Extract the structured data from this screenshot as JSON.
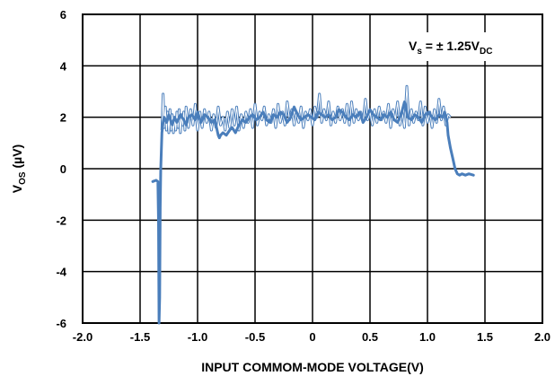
{
  "chart_data": {
    "type": "line",
    "xlabel": "INPUT COMMOM-MODE VOLTAGE(V)",
    "ylabel": {
      "main": "V",
      "sub": "OS",
      "rest": " (µV)"
    },
    "annotation": {
      "v": "V",
      "s": "s",
      "mid": " = ± 1.25V",
      "dc": "DC"
    },
    "xlim": [
      -2.0,
      2.0
    ],
    "ylim": [
      -6,
      6
    ],
    "x_ticks": [
      "-2.0",
      "-1.5",
      "-1.0",
      "-0.5",
      "0",
      "0.5",
      "1.0",
      "1.5",
      "2.0"
    ],
    "y_ticks": [
      "6",
      "4",
      "2",
      "0",
      "-2",
      "-4",
      "-6"
    ],
    "grid": true,
    "colors": {
      "thick": "#4a7ebb",
      "thin": "#4a7ebb"
    },
    "series": [
      {
        "style": "thick",
        "x": [
          -1.39,
          -1.36,
          -1.345,
          -1.34,
          -1.335,
          -1.33,
          -1.325,
          -1.32,
          -1.31,
          -1.3,
          -1.29,
          -1.27,
          -1.25,
          -1.22,
          -1.2,
          -1.18,
          -1.15,
          -1.12,
          -1.1,
          -1.08,
          -1.05,
          -1.02,
          -1.0,
          -0.97,
          -0.94,
          -0.91,
          -0.88,
          -0.85,
          -0.82,
          -0.81,
          -0.8,
          -0.78,
          -0.75,
          -0.72,
          -0.7,
          -0.67,
          -0.64,
          -0.61,
          -0.58,
          -0.55,
          -0.52,
          -0.49,
          -0.46,
          -0.43,
          -0.4,
          -0.37,
          -0.34,
          -0.31,
          -0.28,
          -0.25,
          -0.22,
          -0.19,
          -0.16,
          -0.13,
          -0.1,
          -0.07,
          -0.04,
          -0.01,
          0.02,
          0.05,
          0.08,
          0.11,
          0.14,
          0.17,
          0.2,
          0.23,
          0.26,
          0.29,
          0.32,
          0.35,
          0.38,
          0.41,
          0.44,
          0.47,
          0.5,
          0.53,
          0.56,
          0.59,
          0.62,
          0.65,
          0.68,
          0.71,
          0.74,
          0.77,
          0.8,
          0.83,
          0.86,
          0.89,
          0.92,
          0.95,
          0.98,
          1.01,
          1.04,
          1.07,
          1.1,
          1.13,
          1.15,
          1.17,
          1.18,
          1.2,
          1.22,
          1.24,
          1.26,
          1.28,
          1.3,
          1.33,
          1.36,
          1.4
        ],
        "y": [
          -0.5,
          -0.45,
          -0.5,
          -2.0,
          -6.0,
          -5.0,
          -1.5,
          0.0,
          1.4,
          1.8,
          2.0,
          1.8,
          2.1,
          1.7,
          2.0,
          1.8,
          2.1,
          1.9,
          1.7,
          2.0,
          2.1,
          1.9,
          2.2,
          1.8,
          2.1,
          2.0,
          1.8,
          1.9,
          1.3,
          1.2,
          1.3,
          1.4,
          1.3,
          1.5,
          1.6,
          1.4,
          1.7,
          1.9,
          1.8,
          2.0,
          2.1,
          1.9,
          2.0,
          2.2,
          1.9,
          1.8,
          2.1,
          2.0,
          2.2,
          2.1,
          1.8,
          2.0,
          2.4,
          2.1,
          1.9,
          2.0,
          2.1,
          2.0,
          1.9,
          2.2,
          2.1,
          2.0,
          2.1,
          1.9,
          2.0,
          2.3,
          2.2,
          2.0,
          1.9,
          2.1,
          2.0,
          2.2,
          1.8,
          2.0,
          2.3,
          2.1,
          2.0,
          1.9,
          2.1,
          2.0,
          2.2,
          1.9,
          1.8,
          2.1,
          2.6,
          2.0,
          1.9,
          2.1,
          2.0,
          1.8,
          2.1,
          2.2,
          2.0,
          1.9,
          2.1,
          2.0,
          2.2,
          1.8,
          1.3,
          0.8,
          0.4,
          0.0,
          -0.2,
          -0.25,
          -0.2,
          -0.25,
          -0.2,
          -0.25
        ]
      },
      {
        "style": "thin",
        "x": [
          -1.31,
          -1.3,
          -1.29,
          -1.28,
          -1.27,
          -1.26,
          -1.25,
          -1.24,
          -1.23,
          -1.22,
          -1.21,
          -1.2,
          -1.19,
          -1.18,
          -1.17,
          -1.16,
          -1.15,
          -1.14,
          -1.13,
          -1.12,
          -1.11,
          -1.1,
          -1.08,
          -1.06,
          -1.04,
          -1.02,
          -1.0,
          -0.98,
          -0.96,
          -0.94,
          -0.92,
          -0.9,
          -0.88,
          -0.86,
          -0.84,
          -0.82,
          -0.8,
          -0.78,
          -0.76,
          -0.74,
          -0.72,
          -0.7,
          -0.68,
          -0.66,
          -0.64,
          -0.62,
          -0.6,
          -0.58,
          -0.56,
          -0.54,
          -0.52,
          -0.5,
          -0.48,
          -0.46,
          -0.44,
          -0.42,
          -0.4,
          -0.38,
          -0.36,
          -0.34,
          -0.32,
          -0.3,
          -0.28,
          -0.26,
          -0.24,
          -0.22,
          -0.2,
          -0.18,
          -0.16,
          -0.14,
          -0.12,
          -0.1,
          -0.08,
          -0.06,
          -0.04,
          -0.02,
          0.0,
          0.02,
          0.04,
          0.06,
          0.08,
          0.1,
          0.12,
          0.14,
          0.16,
          0.18,
          0.2,
          0.22,
          0.24,
          0.26,
          0.28,
          0.3,
          0.32,
          0.34,
          0.36,
          0.38,
          0.4,
          0.42,
          0.44,
          0.46,
          0.48,
          0.5,
          0.52,
          0.54,
          0.56,
          0.58,
          0.6,
          0.62,
          0.64,
          0.66,
          0.68,
          0.7,
          0.72,
          0.74,
          0.76,
          0.78,
          0.8,
          0.82,
          0.84,
          0.86,
          0.88,
          0.9,
          0.92,
          0.94,
          0.96,
          0.98,
          1.0,
          1.02,
          1.04,
          1.06,
          1.08,
          1.1,
          1.12,
          1.14,
          1.16,
          1.18,
          1.2
        ],
        "y": [
          1.5,
          2.9,
          1.6,
          2.4,
          1.5,
          2.2,
          1.4,
          2.3,
          1.5,
          2.1,
          1.4,
          2.0,
          1.5,
          2.2,
          1.6,
          2.3,
          1.4,
          2.1,
          1.7,
          2.2,
          1.5,
          2.4,
          1.6,
          2.3,
          1.7,
          2.5,
          1.5,
          2.2,
          1.6,
          2.3,
          1.8,
          2.2,
          1.5,
          2.1,
          1.6,
          2.4,
          1.7,
          2.0,
          1.5,
          2.2,
          1.6,
          2.3,
          1.7,
          2.4,
          1.5,
          2.1,
          1.6,
          2.2,
          1.8,
          2.3,
          1.6,
          2.5,
          1.7,
          2.2,
          1.9,
          2.4,
          1.7,
          2.1,
          1.8,
          2.3,
          1.6,
          2.5,
          1.8,
          2.2,
          1.7,
          2.6,
          1.9,
          2.3,
          1.7,
          2.2,
          1.8,
          2.4,
          1.6,
          2.2,
          1.9,
          2.3,
          1.7,
          2.4,
          2.0,
          2.9,
          1.8,
          2.3,
          1.9,
          2.6,
          1.7,
          2.2,
          1.8,
          2.4,
          1.9,
          2.3,
          1.8,
          2.5,
          1.7,
          2.6,
          1.8,
          2.3,
          1.9,
          2.2,
          1.8,
          2.7,
          1.9,
          2.2,
          1.7,
          2.3,
          1.8,
          2.4,
          1.9,
          2.2,
          1.8,
          2.5,
          1.6,
          2.3,
          1.9,
          2.6,
          1.7,
          2.2,
          1.6,
          3.2,
          1.7,
          2.3,
          1.8,
          2.2,
          1.9,
          2.6,
          1.7,
          2.4,
          1.8,
          2.2,
          1.6,
          2.3,
          1.8,
          2.7,
          1.9,
          2.4,
          1.7,
          2.1,
          2.0
        ]
      }
    ]
  }
}
